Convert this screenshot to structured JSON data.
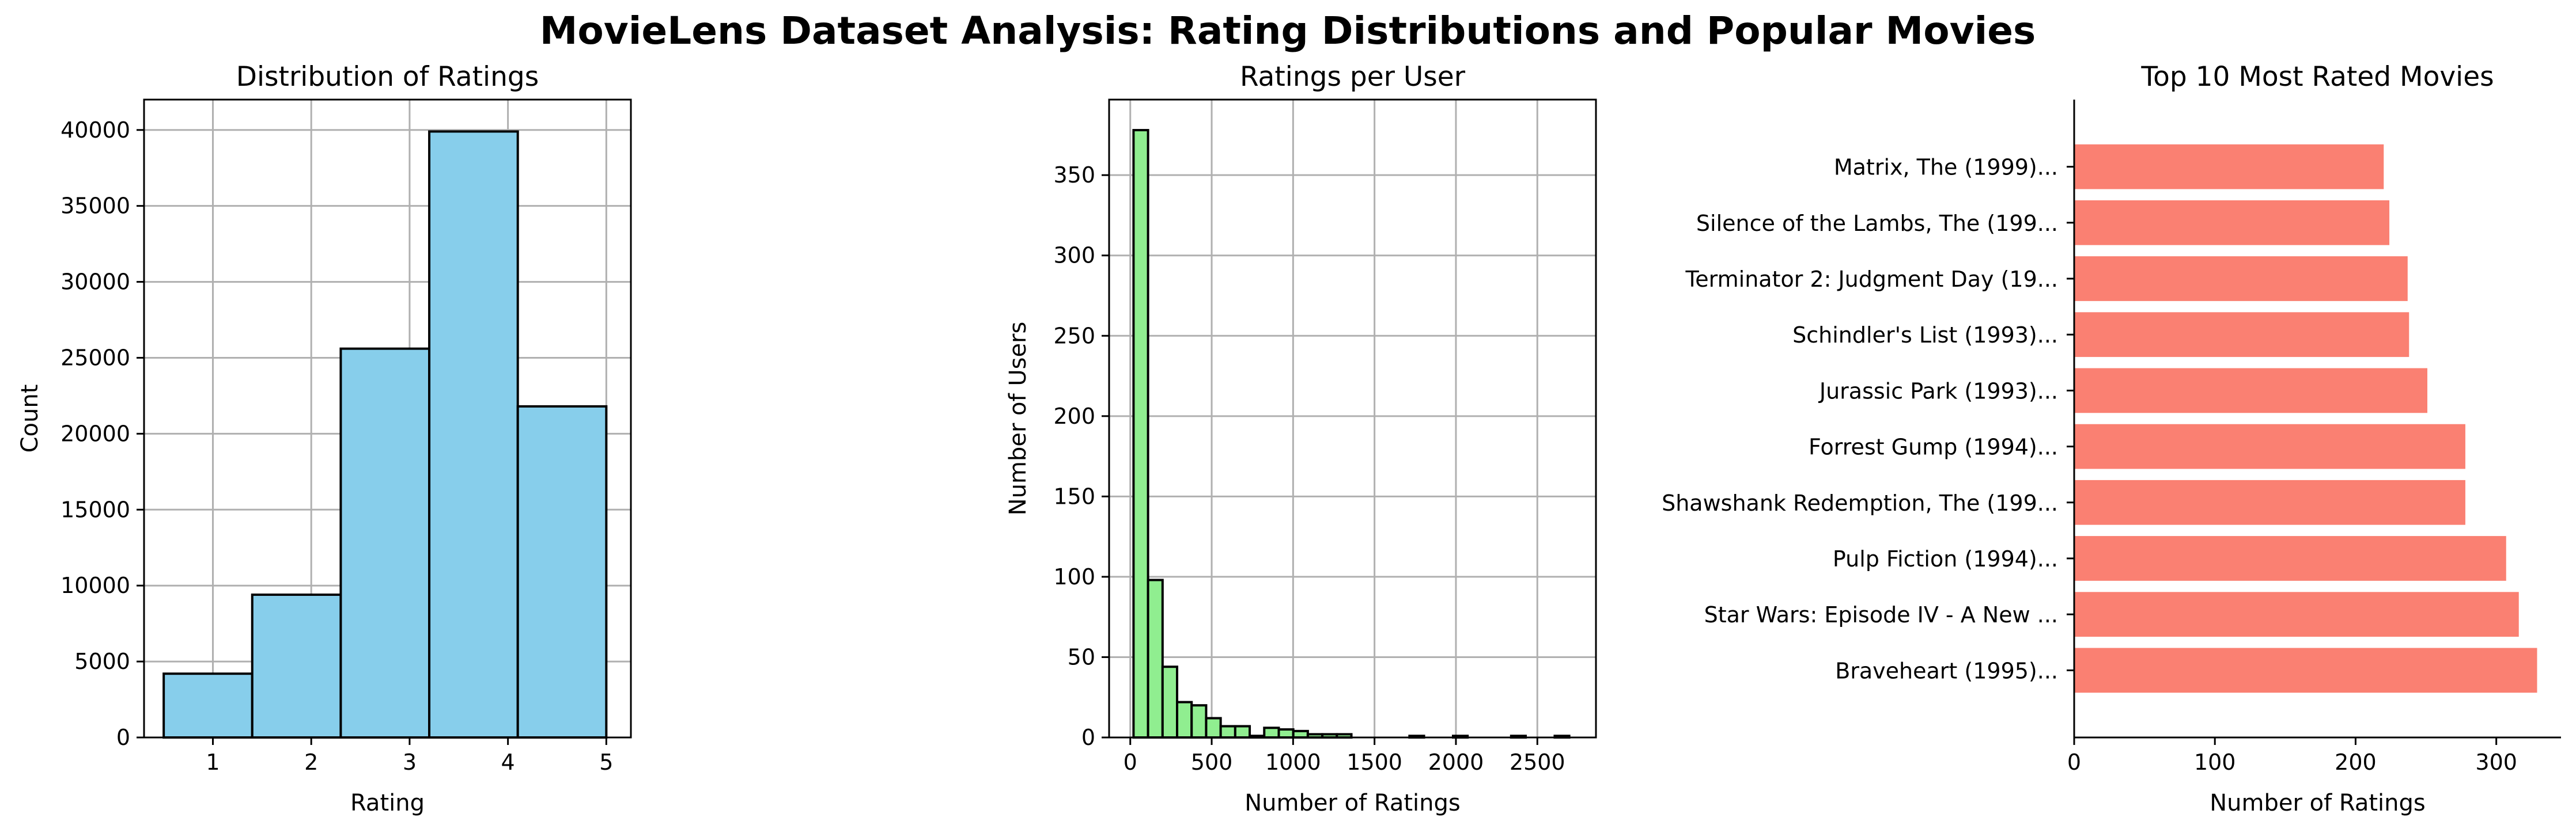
{
  "suptitle": "MovieLens Dataset Analysis: Rating Distributions and Popular Movies",
  "chart_data": [
    {
      "type": "bar",
      "title": "Distribution of Ratings",
      "xlabel": "Rating",
      "ylabel": "Count",
      "xlim": [
        0.3,
        5.25
      ],
      "ylim": [
        0,
        42000
      ],
      "xticks": [
        1,
        2,
        3,
        4,
        5
      ],
      "yticks": [
        0,
        5000,
        10000,
        15000,
        20000,
        25000,
        30000,
        35000,
        40000
      ],
      "grid": true,
      "color": "#87ceeb",
      "bins": [
        {
          "start": 0.5,
          "end": 1.4,
          "value": 4200
        },
        {
          "start": 1.4,
          "end": 2.3,
          "value": 9400
        },
        {
          "start": 2.3,
          "end": 3.2,
          "value": 25600
        },
        {
          "start": 3.2,
          "end": 4.1,
          "value": 39900
        },
        {
          "start": 4.1,
          "end": 5.0,
          "value": 21800
        }
      ]
    },
    {
      "type": "bar",
      "title": "Ratings per User",
      "xlabel": "Number of Ratings",
      "ylabel": "Number of Users",
      "xlim": [
        -130,
        2860
      ],
      "ylim": [
        0,
        397
      ],
      "xticks": [
        0,
        500,
        1000,
        1500,
        2000,
        2500
      ],
      "yticks": [
        0,
        50,
        100,
        150,
        200,
        250,
        300,
        350
      ],
      "grid": true,
      "color": "#90ee90",
      "bin_start": 20,
      "bin_width": 89.2,
      "values": [
        378,
        98,
        44,
        22,
        20,
        12,
        7,
        7,
        1,
        6,
        5,
        4,
        2,
        2,
        2,
        0,
        0,
        0,
        0,
        1,
        0,
        0,
        1,
        0,
        0,
        0,
        1,
        0,
        0,
        1
      ]
    },
    {
      "type": "bar",
      "orientation": "horizontal",
      "title": "Top 10 Most Rated Movies",
      "xlabel": "Number of Ratings",
      "ylabel": "",
      "xlim": [
        0,
        346
      ],
      "xticks": [
        0,
        100,
        200,
        300
      ],
      "grid": false,
      "color": "#fa8072",
      "categories": [
        "Braveheart (1995)...",
        "Star Wars: Episode IV - A New ...",
        "Pulp Fiction (1994)...",
        "Shawshank Redemption, The (199...",
        "Forrest Gump (1994)...",
        "Jurassic Park (1993)...",
        "Schindler's List (1993)...",
        "Terminator 2: Judgment Day (19...",
        "Silence of the Lambs, The (199...",
        "Matrix, The (1999)..."
      ],
      "values": [
        329,
        316,
        307,
        278,
        278,
        251,
        238,
        237,
        224,
        220
      ]
    }
  ]
}
